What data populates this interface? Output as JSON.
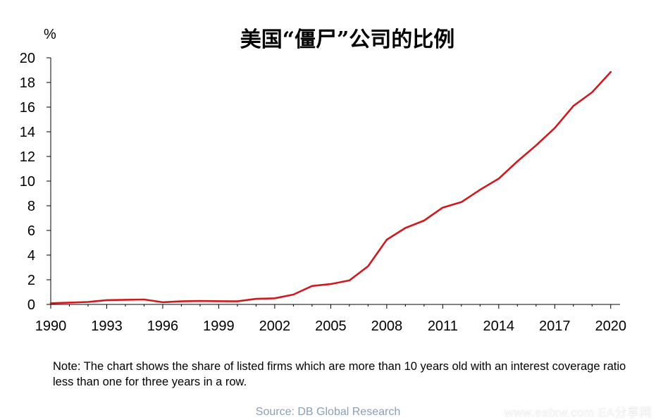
{
  "chart_data": {
    "type": "line",
    "title": "美国“僵尸”公司的比例",
    "ylabel": "%",
    "xlabel": "",
    "xlim": [
      1990,
      2020.5
    ],
    "ylim": [
      0,
      20
    ],
    "x_ticks": [
      1990,
      1993,
      1996,
      1999,
      2002,
      2005,
      2008,
      2011,
      2014,
      2017,
      2020
    ],
    "y_ticks": [
      0,
      2,
      4,
      6,
      8,
      10,
      12,
      14,
      16,
      18,
      20
    ],
    "grid": false,
    "legend": "none",
    "series": [
      {
        "color": "#d0191f",
        "points": [
          [
            1990.0,
            0.1
          ],
          [
            1991.0,
            0.15
          ],
          [
            1992.0,
            0.2
          ],
          [
            1993.0,
            0.35
          ],
          [
            1994.0,
            0.38
          ],
          [
            1995.0,
            0.4
          ],
          [
            1996.0,
            0.18
          ],
          [
            1997.0,
            0.25
          ],
          [
            1998.0,
            0.28
          ],
          [
            1999.0,
            0.26
          ],
          [
            2000.0,
            0.25
          ],
          [
            2001.0,
            0.45
          ],
          [
            2002.0,
            0.5
          ],
          [
            2003.0,
            0.8
          ],
          [
            2004.0,
            1.5
          ],
          [
            2005.0,
            1.65
          ],
          [
            2006.0,
            1.95
          ],
          [
            2007.0,
            3.1
          ],
          [
            2008.0,
            5.25
          ],
          [
            2009.0,
            6.2
          ],
          [
            2010.0,
            6.8
          ],
          [
            2011.0,
            7.85
          ],
          [
            2012.0,
            8.3
          ],
          [
            2013.0,
            9.3
          ],
          [
            2014.0,
            10.2
          ],
          [
            2015.0,
            11.6
          ],
          [
            2016.0,
            12.9
          ],
          [
            2017.0,
            14.3
          ],
          [
            2018.0,
            16.1
          ],
          [
            2019.0,
            17.2
          ],
          [
            2020.0,
            18.85
          ]
        ]
      }
    ]
  },
  "footer": {
    "note": "Note: The chart shows the share of listed firms which are more than 10 years old with an interest coverage ratio less than one for three years in a row.",
    "source": "Source:  DB Global Research",
    "watermark": "www.eafxw.com  EA分享网"
  }
}
